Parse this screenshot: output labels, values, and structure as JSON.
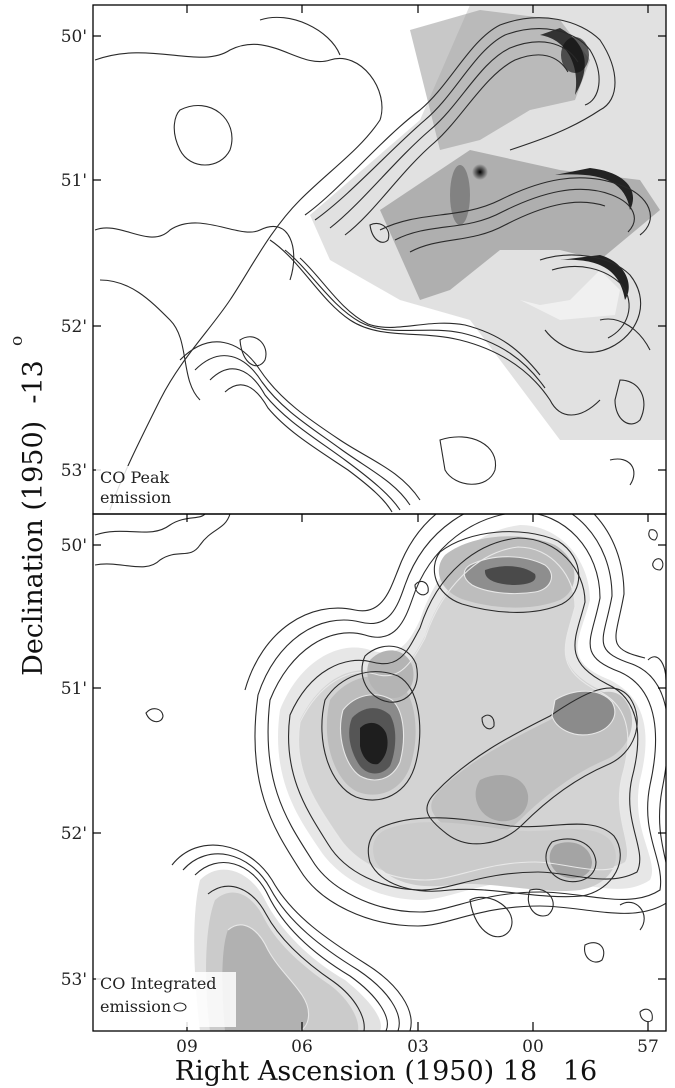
{
  "chart_data": [
    {
      "type": "contour",
      "panel_label_lines": [
        "CO Peak",
        "emission"
      ],
      "ylabel": "Declination (1950)  -13",
      "ylabel_degree": "o",
      "ytick_labels": [
        "50'",
        "51'",
        "52'",
        "53'"
      ],
      "dec_arcmin": [
        50,
        51,
        52,
        53
      ],
      "overlay": "greyscale optical image"
    },
    {
      "type": "contour",
      "panel_label_lines": [
        "CO Integrated",
        "emission"
      ],
      "ytick_labels": [
        "50'",
        "51'",
        "52'",
        "53'"
      ],
      "dec_arcmin": [
        50,
        51,
        52,
        53
      ],
      "xlabel": "Right Ascension (1950) 18   16",
      "xtick_labels": [
        "09",
        "06",
        "03",
        "00",
        "57"
      ],
      "ra_seconds": [
        69,
        66,
        63,
        60,
        57
      ],
      "xlim": [
        72,
        56.5
      ],
      "colormap": "greyscale filled"
    }
  ],
  "colors": {
    "frame": "#000000",
    "contour": "#2a2a2a",
    "light_contour": "#e8e8e8"
  }
}
